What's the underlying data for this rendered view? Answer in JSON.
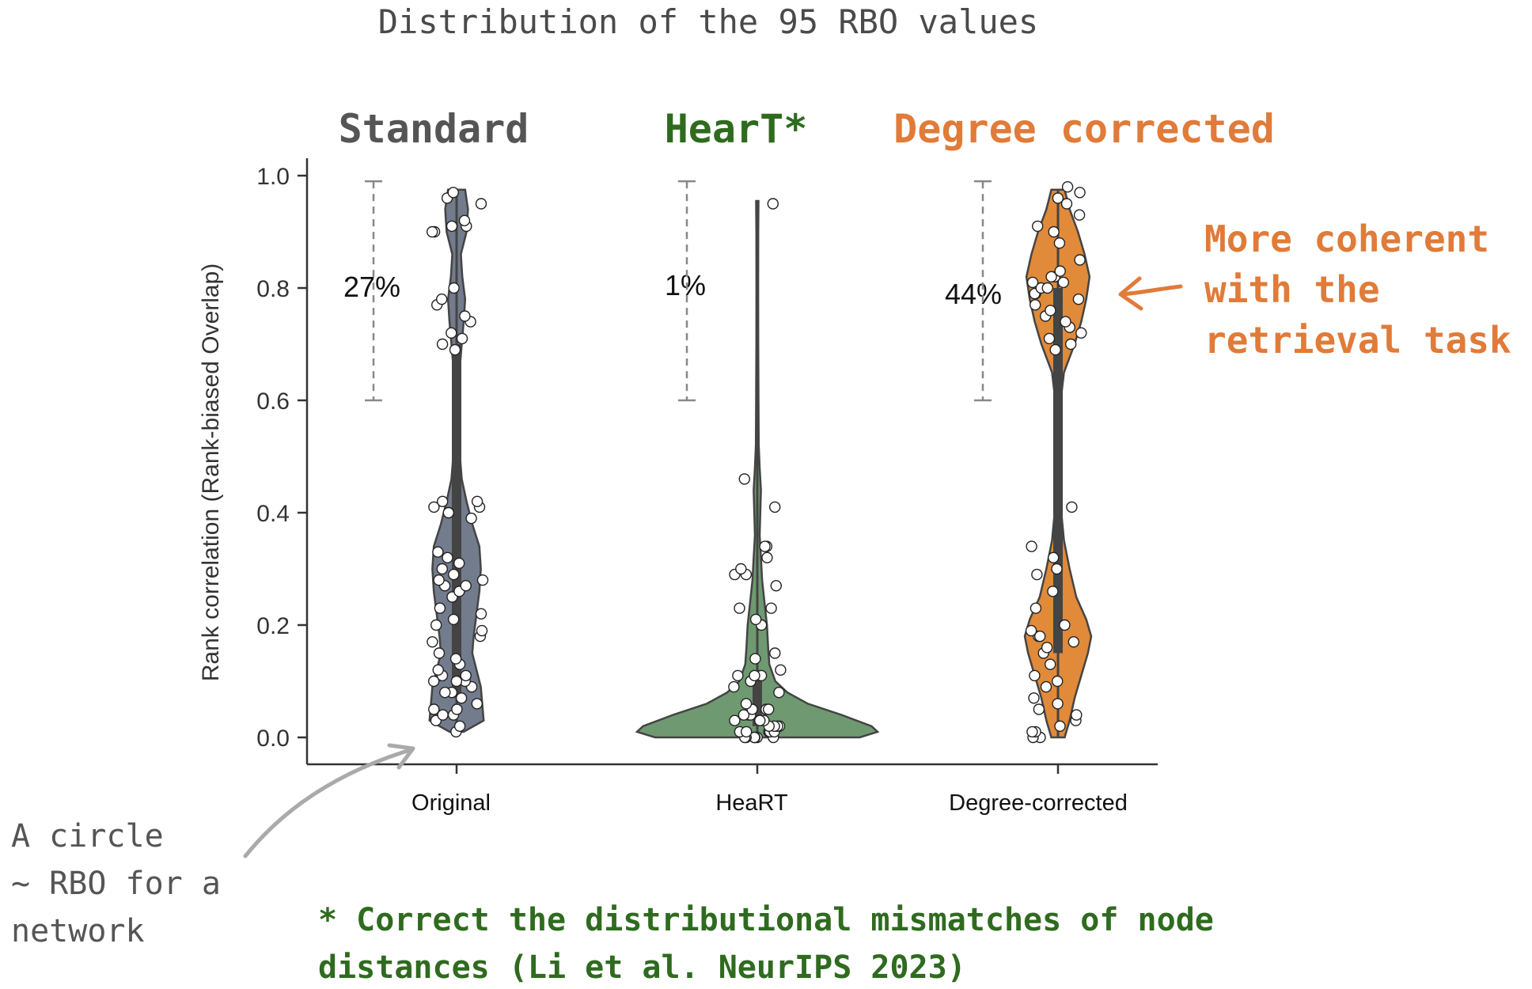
{
  "title": "Distribution of the 95 RBO values",
  "group_headers": [
    {
      "label": "Standard",
      "color": "#555555"
    },
    {
      "label": "HearT*",
      "color": "#2f6b1f"
    },
    {
      "label": "Degree corrected",
      "color": "#e07b39"
    }
  ],
  "annotations": {
    "right_note": [
      "More coherent",
      "with the",
      "retrieval task"
    ],
    "left_note": [
      "A circle",
      "~ RBO for a",
      "network"
    ],
    "footnote": [
      "* Correct the distributional mismatches of node",
      "distances (Li et al. NeurIPS 2023)"
    ]
  },
  "colors": {
    "original": "#727c8c",
    "heart": "#6f9a71",
    "degree": "#e08a3a",
    "axis": "#333333",
    "heart_text": "#2f6b1f",
    "orange_text": "#e07b39"
  },
  "chart_data": {
    "type": "violin",
    "title": "Distribution of the 95 RBO values",
    "ylabel": "Rank correlation (Rank-biased Overlap)",
    "xlabel": "",
    "ylim": [
      -0.05,
      1.03
    ],
    "yticks": [
      "0.0",
      "0.2",
      "0.4",
      "0.6",
      "0.8",
      "1.0"
    ],
    "categories": [
      "Original",
      "HeaRT",
      "Degree-corrected"
    ],
    "bracket_range": [
      0.6,
      0.99
    ],
    "percent_above_0_6": [
      "27%",
      "1%",
      "44%"
    ],
    "series": [
      {
        "name": "Original",
        "density": [
          [
            0.01,
            0.25
          ],
          [
            0.03,
            0.95
          ],
          [
            0.06,
            0.9
          ],
          [
            0.09,
            0.85
          ],
          [
            0.12,
            0.7
          ],
          [
            0.15,
            0.55
          ],
          [
            0.18,
            0.6
          ],
          [
            0.22,
            0.7
          ],
          [
            0.26,
            0.8
          ],
          [
            0.3,
            0.85
          ],
          [
            0.34,
            0.8
          ],
          [
            0.38,
            0.55
          ],
          [
            0.42,
            0.35
          ],
          [
            0.46,
            0.18
          ],
          [
            0.5,
            0.12
          ],
          [
            0.55,
            0.09
          ],
          [
            0.6,
            0.08
          ],
          [
            0.65,
            0.1
          ],
          [
            0.7,
            0.18
          ],
          [
            0.74,
            0.25
          ],
          [
            0.78,
            0.3
          ],
          [
            0.82,
            0.2
          ],
          [
            0.86,
            0.15
          ],
          [
            0.9,
            0.35
          ],
          [
            0.94,
            0.4
          ],
          [
            0.975,
            0.3
          ]
        ],
        "box": {
          "q1": 0.07,
          "median": 0.28,
          "q3": 0.7
        },
        "points": [
          0.01,
          0.02,
          0.03,
          0.04,
          0.04,
          0.05,
          0.05,
          0.06,
          0.07,
          0.08,
          0.08,
          0.09,
          0.1,
          0.1,
          0.1,
          0.11,
          0.11,
          0.12,
          0.13,
          0.14,
          0.15,
          0.17,
          0.18,
          0.19,
          0.2,
          0.21,
          0.22,
          0.23,
          0.25,
          0.26,
          0.27,
          0.27,
          0.28,
          0.28,
          0.29,
          0.3,
          0.31,
          0.32,
          0.33,
          0.39,
          0.4,
          0.4,
          0.41,
          0.41,
          0.42,
          0.42,
          0.69,
          0.7,
          0.71,
          0.72,
          0.74,
          0.75,
          0.77,
          0.78,
          0.8,
          0.9,
          0.9,
          0.91,
          0.91,
          0.92,
          0.95,
          0.96,
          0.97
        ]
      },
      {
        "name": "HeaRT",
        "density": [
          [
            0.0,
            0.85
          ],
          [
            0.01,
            1.0
          ],
          [
            0.02,
            0.95
          ],
          [
            0.04,
            0.7
          ],
          [
            0.06,
            0.42
          ],
          [
            0.08,
            0.25
          ],
          [
            0.1,
            0.15
          ],
          [
            0.13,
            0.1
          ],
          [
            0.16,
            0.09
          ],
          [
            0.2,
            0.08
          ],
          [
            0.24,
            0.06
          ],
          [
            0.28,
            0.04
          ],
          [
            0.32,
            0.03
          ],
          [
            0.36,
            0.02
          ],
          [
            0.4,
            0.025
          ],
          [
            0.44,
            0.03
          ],
          [
            0.48,
            0.02
          ],
          [
            0.52,
            0.012
          ],
          [
            0.6,
            0.01
          ],
          [
            0.7,
            0.008
          ],
          [
            0.8,
            0.007
          ],
          [
            0.9,
            0.008
          ],
          [
            0.955,
            0.01
          ]
        ],
        "box": {
          "q1": 0.02,
          "median": 0.05,
          "q3": 0.12
        },
        "points": [
          0.0,
          0.0,
          0.0,
          0.0,
          0.0,
          0.0,
          0.0,
          0.01,
          0.01,
          0.01,
          0.01,
          0.01,
          0.02,
          0.02,
          0.02,
          0.02,
          0.03,
          0.03,
          0.03,
          0.04,
          0.04,
          0.04,
          0.05,
          0.05,
          0.05,
          0.06,
          0.08,
          0.09,
          0.1,
          0.11,
          0.11,
          0.11,
          0.12,
          0.14,
          0.15,
          0.2,
          0.21,
          0.23,
          0.23,
          0.27,
          0.29,
          0.29,
          0.3,
          0.32,
          0.34,
          0.34,
          0.41,
          0.46,
          0.95
        ]
      },
      {
        "name": "Degree-corrected",
        "density": [
          [
            0.0,
            0.2
          ],
          [
            0.03,
            0.35
          ],
          [
            0.07,
            0.5
          ],
          [
            0.11,
            0.7
          ],
          [
            0.15,
            0.9
          ],
          [
            0.18,
            1.0
          ],
          [
            0.21,
            0.85
          ],
          [
            0.25,
            0.55
          ],
          [
            0.3,
            0.35
          ],
          [
            0.35,
            0.18
          ],
          [
            0.4,
            0.1
          ],
          [
            0.45,
            0.08
          ],
          [
            0.5,
            0.08
          ],
          [
            0.55,
            0.08
          ],
          [
            0.6,
            0.08
          ],
          [
            0.65,
            0.18
          ],
          [
            0.7,
            0.5
          ],
          [
            0.74,
            0.7
          ],
          [
            0.78,
            0.85
          ],
          [
            0.82,
            0.95
          ],
          [
            0.86,
            0.8
          ],
          [
            0.9,
            0.6
          ],
          [
            0.94,
            0.35
          ],
          [
            0.975,
            0.2
          ]
        ],
        "box": {
          "q1": 0.15,
          "median": 0.62,
          "q3": 0.8
        },
        "points": [
          0.0,
          0.0,
          0.01,
          0.01,
          0.02,
          0.03,
          0.04,
          0.05,
          0.06,
          0.07,
          0.09,
          0.1,
          0.11,
          0.13,
          0.15,
          0.16,
          0.17,
          0.18,
          0.18,
          0.19,
          0.2,
          0.23,
          0.26,
          0.29,
          0.3,
          0.32,
          0.34,
          0.41,
          0.69,
          0.7,
          0.71,
          0.72,
          0.73,
          0.74,
          0.75,
          0.76,
          0.77,
          0.78,
          0.79,
          0.79,
          0.8,
          0.8,
          0.81,
          0.81,
          0.82,
          0.82,
          0.83,
          0.85,
          0.88,
          0.9,
          0.91,
          0.93,
          0.95,
          0.96,
          0.97,
          0.98
        ]
      }
    ]
  }
}
